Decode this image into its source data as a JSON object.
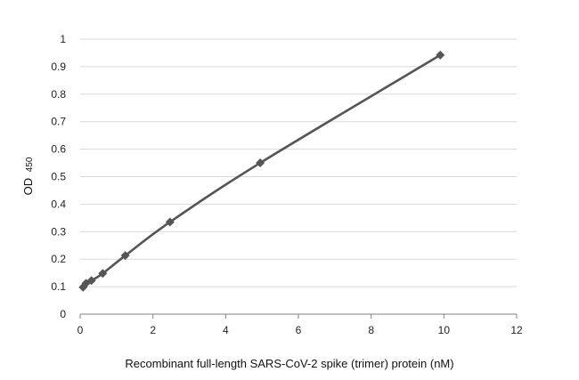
{
  "chart_data": {
    "type": "line",
    "title": "",
    "xlabel": "Recombinant full-length SARS-CoV-2 spike (trimer) protein (nM)",
    "ylabel_main": "OD",
    "ylabel_sub": "450",
    "xlim": [
      0,
      12
    ],
    "ylim": [
      0,
      1
    ],
    "xticks": [
      0,
      2,
      4,
      6,
      8,
      10,
      12
    ],
    "yticks": [
      0,
      0.1,
      0.2,
      0.3,
      0.4,
      0.5,
      0.6,
      0.7,
      0.8,
      0.9,
      1
    ],
    "xtick_labels": [
      "0",
      "2",
      "4",
      "6",
      "8",
      "10",
      "12"
    ],
    "ytick_labels": [
      "0",
      "0.1",
      "0.2",
      "0.3",
      "0.4",
      "0.5",
      "0.6",
      "0.7",
      "0.8",
      "0.9",
      "1"
    ],
    "grid": true,
    "legend": "none",
    "series": [
      {
        "marker": "diamond",
        "color": "#555555",
        "points": [
          {
            "x": 0.08,
            "y": 0.098
          },
          {
            "x": 0.16,
            "y": 0.112
          },
          {
            "x": 0.31,
            "y": 0.122
          },
          {
            "x": 0.62,
            "y": 0.148
          },
          {
            "x": 1.24,
            "y": 0.213
          },
          {
            "x": 2.47,
            "y": 0.335
          },
          {
            "x": 4.95,
            "y": 0.55
          },
          {
            "x": 9.9,
            "y": 0.942
          }
        ]
      }
    ]
  }
}
